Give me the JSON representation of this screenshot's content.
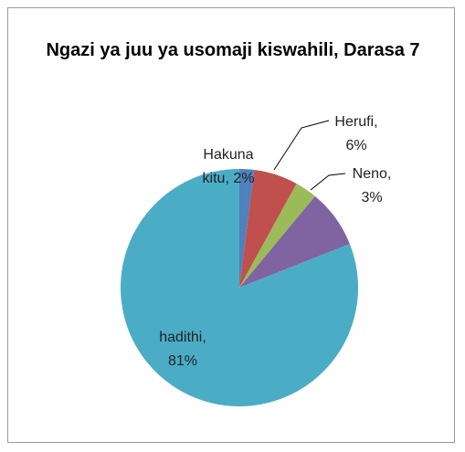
{
  "chart_data": {
    "type": "pie",
    "title": "Ngazi ya juu ya usomaji kiswahili, Darasa 7",
    "categories": [
      "Hakuna kitu",
      "Herufi",
      "Neno",
      null,
      "hadithi"
    ],
    "values": [
      2,
      6,
      3,
      8,
      81
    ],
    "value_labels": [
      "2%",
      "6%",
      "3%",
      null,
      "81%"
    ],
    "label_separator": ",",
    "colors": [
      "#4f81bd",
      "#c0504d",
      "#9bbb59",
      "#8064a2",
      "#4bacc6"
    ]
  }
}
